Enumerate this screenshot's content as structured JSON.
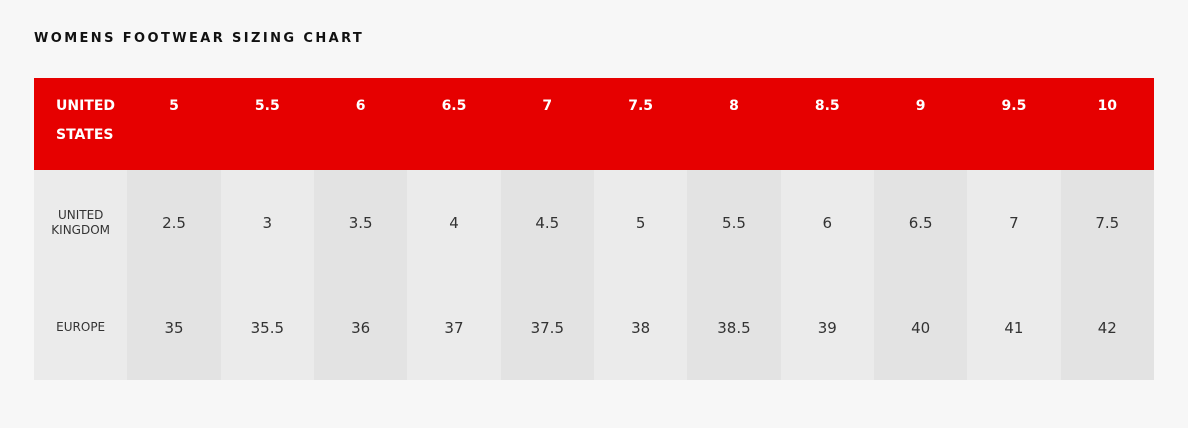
{
  "title": "WOMENS FOOTWEAR SIZING CHART",
  "colors": {
    "header_bg": "#e60000",
    "header_text": "#ffffff"
  },
  "header": {
    "label_line1": "UNITED",
    "label_line2": "STATES",
    "sizes": [
      "5",
      "5.5",
      "6",
      "6.5",
      "7",
      "7.5",
      "8",
      "8.5",
      "9",
      "9.5",
      "10"
    ]
  },
  "rows": [
    {
      "label_line1": "UNITED",
      "label_line2": "KINGDOM",
      "values": [
        "2.5",
        "3",
        "3.5",
        "4",
        "4.5",
        "5",
        "5.5",
        "6",
        "6.5",
        "7",
        "7.5"
      ]
    },
    {
      "label_line1": "EUROPE",
      "label_line2": "",
      "values": [
        "35",
        "35.5",
        "36",
        "37",
        "37.5",
        "38",
        "38.5",
        "39",
        "40",
        "41",
        "42"
      ]
    }
  ]
}
